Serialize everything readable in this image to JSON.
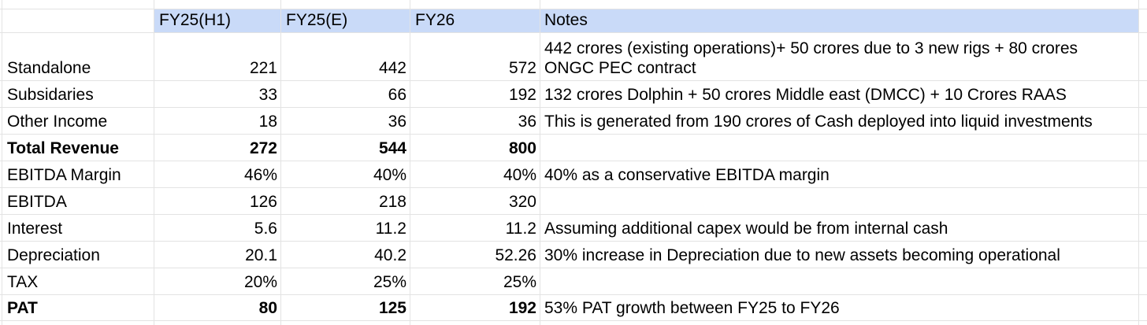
{
  "sheet": {
    "columns": [
      "",
      "FY25(H1)",
      "FY25(E)",
      "FY26",
      "Notes"
    ],
    "rows": [
      {
        "label": "Standalone",
        "values": [
          "221",
          "442",
          "572"
        ],
        "note": "442 crores (existing operations)+ 50 crores due to 3 new rigs + 80 crores ONGC PEC contract",
        "emphasis": false
      },
      {
        "label": "Subsidaries",
        "values": [
          "33",
          "66",
          "192"
        ],
        "note": "132 crores Dolphin + 50 crores Middle east (DMCC) + 10 Crores RAAS",
        "emphasis": false
      },
      {
        "label": "Other Income",
        "values": [
          "18",
          "36",
          "36"
        ],
        "note": "This is generated from 190 crores of Cash deployed into liquid investments",
        "emphasis": false
      },
      {
        "label": "Total Revenue",
        "values": [
          "272",
          "544",
          "800"
        ],
        "note": "",
        "emphasis": true
      },
      {
        "label": "EBITDA Margin",
        "values": [
          "46%",
          "40%",
          "40%"
        ],
        "note": "40% as a conservative EBITDA margin",
        "emphasis": false
      },
      {
        "label": "EBITDA",
        "values": [
          "126",
          "218",
          "320"
        ],
        "note": "",
        "emphasis": false
      },
      {
        "label": "Interest",
        "values": [
          "5.6",
          "11.2",
          "11.2"
        ],
        "note": "Assuming additional capex would be from internal cash",
        "emphasis": false
      },
      {
        "label": "Depreciation",
        "values": [
          "20.1",
          "40.2",
          "52.26"
        ],
        "note": "30% increase in Depreciation due to new assets becoming operational",
        "emphasis": false
      },
      {
        "label": "TAX",
        "values": [
          "20%",
          "25%",
          "25%"
        ],
        "note": "",
        "emphasis": false
      },
      {
        "label": "PAT",
        "values": [
          "80",
          "125",
          "192"
        ],
        "note": "53% PAT growth between FY25 to FY26",
        "emphasis": true
      }
    ],
    "colors": {
      "header_bg": "#c9daf8",
      "gridline": "#e3e3e3",
      "text": "#000000"
    }
  }
}
